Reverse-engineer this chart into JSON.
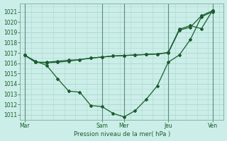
{
  "xlabel": "Pression niveau de la mer( hPa )",
  "bg_color": "#cceee8",
  "grid_color": "#aad8d0",
  "line_color": "#1a5c2e",
  "vline_color": "#5a8a82",
  "ylim": [
    1010.5,
    1021.8
  ],
  "yticks": [
    1011,
    1012,
    1013,
    1014,
    1015,
    1016,
    1017,
    1018,
    1019,
    1020,
    1021
  ],
  "xtick_labels": [
    "Mar",
    "Sam",
    "Mer",
    "Jeu",
    "Ven"
  ],
  "xtick_positions": [
    0,
    3.5,
    4.5,
    6.5,
    8.5
  ],
  "xlim": [
    -0.2,
    9.0
  ],
  "series": [
    {
      "x": [
        0,
        0.5,
        1.0,
        1.5,
        2.0,
        2.5,
        3.0,
        3.5,
        4.0,
        4.5,
        5.0,
        5.5,
        6.0,
        6.5,
        7.0,
        7.5,
        8.0,
        8.5
      ],
      "y": [
        1016.8,
        1016.2,
        1015.8,
        1014.5,
        1013.3,
        1013.2,
        1011.9,
        1011.8,
        1011.15,
        1010.8,
        1011.4,
        1012.5,
        1013.8,
        1016.1,
        1016.8,
        1018.3,
        1020.5,
        1021.0
      ]
    },
    {
      "x": [
        0,
        0.5,
        1.0,
        1.5,
        2.0,
        2.5,
        3.0,
        3.5,
        4.0,
        4.5,
        5.0,
        5.5,
        6.0,
        6.5,
        7.0,
        7.5,
        8.0,
        8.5
      ],
      "y": [
        1016.8,
        1016.1,
        1016.1,
        1016.2,
        1016.3,
        1016.35,
        1016.5,
        1016.6,
        1016.7,
        1016.75,
        1016.8,
        1016.85,
        1016.9,
        1017.0,
        1019.2,
        1019.5,
        1020.6,
        1021.1
      ]
    },
    {
      "x": [
        0,
        0.5,
        1.0,
        1.5,
        2.0,
        2.5,
        3.0,
        3.5,
        4.0,
        4.5,
        5.0,
        5.5,
        6.0,
        6.5,
        7.0,
        7.5,
        8.0,
        8.5
      ],
      "y": [
        1016.8,
        1016.1,
        1016.05,
        1016.1,
        1016.2,
        1016.35,
        1016.5,
        1016.6,
        1016.7,
        1016.75,
        1016.8,
        1016.85,
        1016.9,
        1017.05,
        1019.3,
        1019.65,
        1019.35,
        1021.1
      ]
    }
  ]
}
